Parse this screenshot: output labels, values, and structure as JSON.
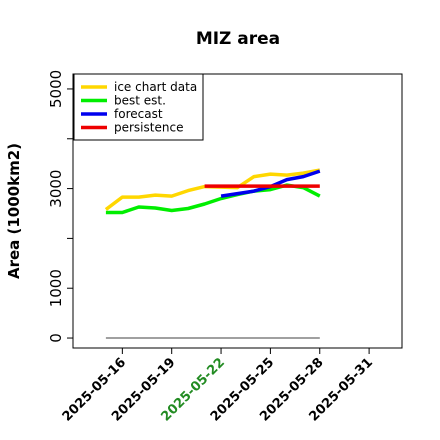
{
  "chart_data": {
    "type": "line",
    "title": "MIZ area",
    "xlabel": "",
    "ylabel": "Area (1000km2)",
    "x_type": "date",
    "xlim": [
      "2025-05-13",
      "2025-06-02"
    ],
    "ylim": [
      -200,
      5300
    ],
    "x_ticks": [
      {
        "date": "2025-05-16",
        "label": "2025-05-16",
        "color": "#000000"
      },
      {
        "date": "2025-05-19",
        "label": "2025-05-19",
        "color": "#000000"
      },
      {
        "date": "2025-05-22",
        "label": "2025-05-22",
        "color": "#228B22"
      },
      {
        "date": "2025-05-25",
        "label": "2025-05-25",
        "color": "#000000"
      },
      {
        "date": "2025-05-28",
        "label": "2025-05-28",
        "color": "#000000"
      },
      {
        "date": "2025-05-31",
        "label": "2025-05-31",
        "color": "#000000"
      }
    ],
    "y_ticks": [
      {
        "value": 0,
        "label": "0"
      },
      {
        "value": 1000,
        "label": "1000"
      },
      {
        "value": 2000,
        "label": ""
      },
      {
        "value": 3000,
        "label": "3000"
      },
      {
        "value": 4000,
        "label": ""
      },
      {
        "value": 5000,
        "label": "5000"
      }
    ],
    "grid": false,
    "legend_position": "top-left",
    "series": [
      {
        "name": "ice chart data",
        "color": "#FFD700",
        "x": [
          "2025-05-15",
          "2025-05-16",
          "2025-05-17",
          "2025-05-18",
          "2025-05-19",
          "2025-05-20",
          "2025-05-21",
          "2025-05-22",
          "2025-05-23",
          "2025-05-24",
          "2025-05-25",
          "2025-05-26",
          "2025-05-27",
          "2025-05-28"
        ],
        "y": [
          2580,
          2830,
          2830,
          2870,
          2850,
          2960,
          3040,
          3030,
          3020,
          3240,
          3290,
          3270,
          3310,
          3370
        ]
      },
      {
        "name": "best est.",
        "color": "#00EE00",
        "x": [
          "2025-05-15",
          "2025-05-16",
          "2025-05-17",
          "2025-05-18",
          "2025-05-19",
          "2025-05-20",
          "2025-05-21",
          "2025-05-22",
          "2025-05-23",
          "2025-05-24",
          "2025-05-25",
          "2025-05-26",
          "2025-05-27",
          "2025-05-28"
        ],
        "y": [
          2520,
          2520,
          2630,
          2610,
          2560,
          2600,
          2690,
          2800,
          2880,
          2950,
          2980,
          3070,
          3020,
          2850
        ]
      },
      {
        "name": "forecast",
        "color": "#0000EE",
        "x": [
          "2025-05-22",
          "2025-05-23",
          "2025-05-24",
          "2025-05-25",
          "2025-05-26",
          "2025-05-27",
          "2025-05-28"
        ],
        "y": [
          2850,
          2900,
          2950,
          3040,
          3180,
          3240,
          3350
        ]
      },
      {
        "name": "persistence",
        "color": "#EE0000",
        "x": [
          "2025-05-21",
          "2025-05-28"
        ],
        "y": [
          3050,
          3050
        ]
      },
      {
        "name": "",
        "color": "#808080",
        "x": [
          "2025-05-15",
          "2025-05-28"
        ],
        "y": [
          0,
          0
        ]
      }
    ]
  }
}
